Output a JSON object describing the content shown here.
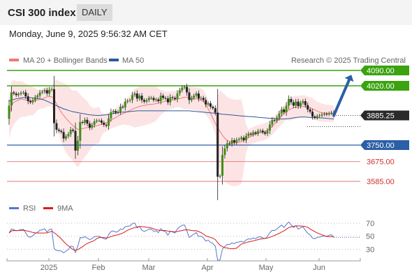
{
  "header": {
    "title": "CSI 300 index",
    "timeframe": "DAILY",
    "datetime": "Monday, June 9, 2025 9:56:32 AM CET"
  },
  "legend": {
    "ma20": "MA 20 + Bollinger Bands",
    "ma50": "MA 50",
    "credit": "Research © 2025 Trading Central",
    "ma20_color": "#f07878",
    "ma50_color": "#2b5a9a"
  },
  "rsi_legend": {
    "rsi": "RSI",
    "ma9": "9MA",
    "rsi_color": "#5577cc",
    "ma9_color": "#d81b1b"
  },
  "chart_data": [
    {
      "type": "candlestick",
      "x_ticks": [
        "2025",
        "Feb",
        "Mar",
        "Apr",
        "May",
        "Jun"
      ],
      "price_range": [
        3545,
        4120
      ],
      "current_price": {
        "label": "3885.25",
        "value": 3885.25
      },
      "levels": [
        {
          "label": "4090.00",
          "value": 4090,
          "kind": "resistance"
        },
        {
          "label": "4020.00",
          "value": 4020,
          "kind": "resistance"
        },
        {
          "label": "3750.00",
          "value": 3750,
          "kind": "pivot"
        },
        {
          "label": "3675.00",
          "value": 3675,
          "kind": "support"
        },
        {
          "label": "3585.00",
          "value": 3585,
          "kind": "support"
        }
      ],
      "projection": {
        "from": 3885,
        "to": 4085
      },
      "closes": [
        3930,
        3990,
        3985,
        3978,
        3983,
        3988,
        3990,
        3972,
        3950,
        3945,
        3955,
        3968,
        3975,
        3990,
        3993,
        4000,
        3985,
        4002,
        4005,
        3850,
        3820,
        3815,
        3810,
        3780,
        3790,
        3800,
        3820,
        3815,
        3725,
        3770,
        3855,
        3852,
        3865,
        3848,
        3830,
        3842,
        3858,
        3862,
        3862,
        3852,
        3842,
        3838,
        3872,
        3900,
        3905,
        3898,
        3902,
        3925,
        3922,
        3948,
        3952,
        3955,
        3978,
        3985,
        3962,
        3975,
        3955,
        3948,
        3955,
        3965,
        3965,
        3955,
        3958,
        3950,
        3975,
        3965,
        3962,
        3945,
        3968,
        3965,
        3960,
        3985,
        4000,
        4012,
        4015,
        3990,
        3955,
        3965,
        3975,
        3985,
        3962,
        3965,
        3955,
        3935,
        3940,
        3925,
        3918,
        3898,
        3606,
        3610,
        3705,
        3735,
        3758,
        3755,
        3772,
        3762,
        3774,
        3778,
        3784,
        3772,
        3792,
        3802,
        3798,
        3808,
        3802,
        3814,
        3816,
        3808,
        3802,
        3816,
        3844,
        3864,
        3862,
        3875,
        3894,
        3912,
        3900,
        3930,
        3960,
        3945,
        3930,
        3948,
        3928,
        3942,
        3950,
        3932,
        3912,
        3902,
        3880,
        3875,
        3883,
        3885,
        3890,
        3892,
        3890,
        3895,
        3898,
        3885.25
      ],
      "ma20": [
        3880,
        3930,
        3945,
        3950,
        3955,
        3960,
        3958,
        3955,
        3955,
        3953,
        3950,
        3953,
        3955,
        3958,
        3962,
        3965,
        3970,
        3972,
        3970,
        3960,
        3938,
        3918,
        3900,
        3885,
        3872,
        3860,
        3848,
        3838,
        3830,
        3822,
        3822,
        3825,
        3828,
        3830,
        3830,
        3832,
        3835,
        3838,
        3842,
        3845,
        3850,
        3852,
        3858,
        3864,
        3870,
        3876,
        3882,
        3888,
        3893,
        3898,
        3903,
        3908,
        3913,
        3918,
        3922,
        3926,
        3929,
        3931,
        3933,
        3935,
        3936,
        3937,
        3939,
        3941,
        3944,
        3947,
        3950,
        3952,
        3954,
        3956,
        3958,
        3960,
        3962,
        3965,
        3968,
        3968,
        3965,
        3963,
        3962,
        3960,
        3958,
        3955,
        3948,
        3935,
        3915,
        3895,
        3872,
        3850,
        3830,
        3812,
        3795,
        3782,
        3772,
        3766,
        3762,
        3760,
        3760,
        3762,
        3766,
        3772,
        3778,
        3784,
        3790,
        3796,
        3800,
        3803,
        3806,
        3808,
        3812,
        3818,
        3826,
        3835,
        3846,
        3858,
        3870,
        3882,
        3894,
        3903,
        3910,
        3915,
        3920,
        3922,
        3924,
        3925,
        3926,
        3926,
        3924,
        3920,
        3915,
        3910,
        3905,
        3900,
        3898,
        3896,
        3895,
        3894,
        3893,
        3892
      ],
      "ma50": [
        3950,
        3955,
        3958,
        3961,
        3963,
        3965,
        3966,
        3966,
        3966,
        3966,
        3965,
        3964,
        3962,
        3960,
        3958,
        3955,
        3950,
        3945,
        3940,
        3935,
        3930,
        3925,
        3920,
        3915,
        3912,
        3908,
        3905,
        3902,
        3900,
        3898,
        3896,
        3894,
        3892,
        3890,
        3888,
        3887,
        3886,
        3885,
        3885,
        3886,
        3887,
        3888,
        3890,
        3892,
        3894,
        3896,
        3898,
        3899,
        3900,
        3901,
        3902,
        3903,
        3904,
        3905,
        3906,
        3906,
        3906,
        3906,
        3906,
        3906,
        3906,
        3906,
        3906,
        3906,
        3906,
        3906,
        3906,
        3906,
        3906,
        3906,
        3906,
        3906,
        3906,
        3906,
        3906,
        3906,
        3906,
        3905,
        3904,
        3903,
        3902,
        3901,
        3900,
        3899,
        3898,
        3897,
        3896,
        3895,
        3894,
        3892,
        3891,
        3890,
        3889,
        3888,
        3887,
        3886,
        3885,
        3884,
        3883,
        3882,
        3881,
        3880,
        3880,
        3879,
        3878,
        3877,
        3876,
        3875,
        3874,
        3873,
        3872,
        3872,
        3871,
        3870,
        3870,
        3869,
        3869,
        3870,
        3871,
        3872,
        3874,
        3876,
        3877,
        3878,
        3878,
        3878,
        3877,
        3876,
        3876,
        3875,
        3875,
        3874,
        3874,
        3873,
        3872,
        3871,
        3870,
        3869
      ]
    },
    {
      "type": "line",
      "name": "RSI",
      "ylim": [
        20,
        80
      ],
      "y_ticks": [
        70,
        50,
        30
      ],
      "x_ticks": [
        "2025",
        "Feb",
        "Mar",
        "Apr",
        "May",
        "Jun"
      ]
    }
  ]
}
